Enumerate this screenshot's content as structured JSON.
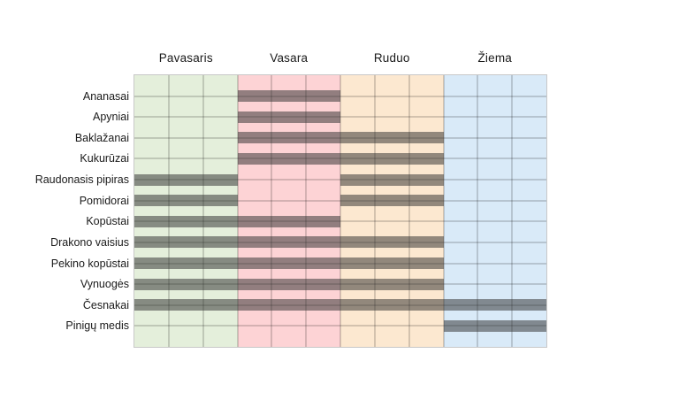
{
  "chart_data": {
    "type": "gantt",
    "title": "",
    "x_unit": "months",
    "x_range": [
      0,
      12
    ],
    "grid": true,
    "legend_position": "none",
    "seasons": [
      {
        "label": "Pavasaris",
        "bg": "#e4efdb",
        "months": 3
      },
      {
        "label": "Vasara",
        "bg": "#fdd3d5",
        "months": 3
      },
      {
        "label": "Ruduo",
        "bg": "#fce8d0",
        "months": 3
      },
      {
        "label": "Žiema",
        "bg": "#d9eaf8",
        "months": 3
      }
    ],
    "rows": [
      {
        "label": "Ananasai",
        "segments": [
          [
            3,
            6
          ]
        ]
      },
      {
        "label": "Apyniai",
        "segments": [
          [
            3,
            6
          ]
        ]
      },
      {
        "label": "Baklažanai",
        "segments": [
          [
            3,
            9
          ]
        ]
      },
      {
        "label": "Kukurūzai",
        "segments": [
          [
            3,
            9
          ]
        ]
      },
      {
        "label": "Raudonasis pipiras",
        "segments": [
          [
            0,
            3
          ],
          [
            6,
            9
          ]
        ]
      },
      {
        "label": "Pomidorai",
        "segments": [
          [
            0,
            3
          ],
          [
            6,
            9
          ]
        ]
      },
      {
        "label": "Kopūstai",
        "segments": [
          [
            0,
            6
          ]
        ]
      },
      {
        "label": "Drakono vaisius",
        "segments": [
          [
            0,
            9
          ]
        ]
      },
      {
        "label": "Pekino kopūstai",
        "segments": [
          [
            0,
            9
          ]
        ]
      },
      {
        "label": "Vynuogės",
        "segments": [
          [
            0,
            9
          ]
        ]
      },
      {
        "label": "Česnakai",
        "segments": [
          [
            0,
            12
          ]
        ]
      },
      {
        "label": "Pinigų medis",
        "segments": [
          [
            9,
            12
          ]
        ]
      }
    ],
    "colors": {
      "bar": "rgba(47, 47, 47, 0.52)",
      "grid_line": "rgba(0, 0, 0, 0.16)",
      "outer_border": "#c8c8c8",
      "text": "#1a1a1a",
      "background": "#ffffff"
    }
  }
}
